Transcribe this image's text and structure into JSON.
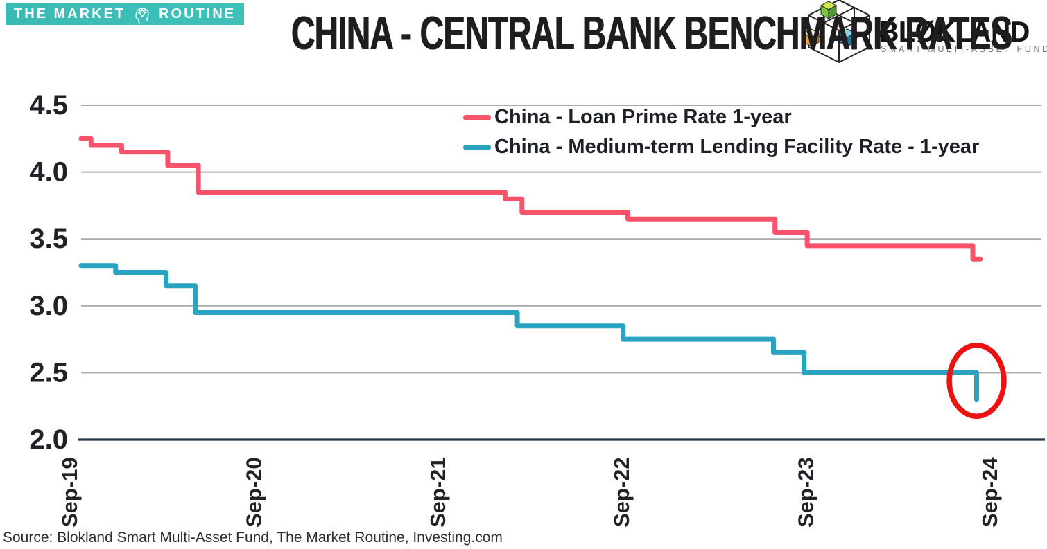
{
  "header": {
    "banner": {
      "text_left": "THE MARKET",
      "text_right": "ROUTINE",
      "icon": "head-lightbulb-icon",
      "bg_color": "#3ABAB3",
      "text_color": "#FFFFFF"
    },
    "title": "CHINA - CENTRAL BANK BENCHMARK RATES",
    "blokland_logo": {
      "wordmark": "BLØKLAND",
      "subtitle": "SMART MULTI-ASSET FUND",
      "icon": "blokland-cubes-icon",
      "cube_colors": [
        "#7DC242",
        "#F0A32A",
        "#2B9FC6"
      ]
    }
  },
  "chart_data": {
    "type": "line",
    "step": "post",
    "title": "CHINA - CENTRAL BANK BENCHMARK RATES",
    "x_axis": {
      "unit": "months since Sep-2019",
      "ticks": [
        {
          "t": 0,
          "label": "Sep-19"
        },
        {
          "t": 12,
          "label": "Sep-20"
        },
        {
          "t": 24,
          "label": "Sep-21"
        },
        {
          "t": 36,
          "label": "Sep-22"
        },
        {
          "t": 48,
          "label": "Sep-23"
        },
        {
          "t": 60,
          "label": "Sep-24"
        }
      ]
    },
    "y_axis": {
      "min": 2.0,
      "max": 4.5,
      "tick_step": 0.5,
      "tick_labels": [
        "4.5",
        "4.0",
        "3.5",
        "3.0",
        "2.5",
        "2.0"
      ],
      "grid_color": "#A9A9A9",
      "axis_color": "#22344A"
    },
    "series": [
      {
        "name": "China - Loan Prime Rate 1-year",
        "color": "#F8536B",
        "points": [
          {
            "t": 0,
            "v": 4.25
          },
          {
            "t": 0.6,
            "v": 4.2
          },
          {
            "t": 2.6,
            "v": 4.15
          },
          {
            "t": 5.6,
            "v": 4.05
          },
          {
            "t": 7.6,
            "v": 3.85
          },
          {
            "t": 27.6,
            "v": 3.8
          },
          {
            "t": 28.7,
            "v": 3.7
          },
          {
            "t": 35.6,
            "v": 3.65
          },
          {
            "t": 45.2,
            "v": 3.55
          },
          {
            "t": 47.3,
            "v": 3.45
          },
          {
            "t": 58.1,
            "v": 3.35
          },
          {
            "t": 58.6,
            "v": 3.35
          }
        ]
      },
      {
        "name": "China - Medium-term Lending Facility Rate - 1-year",
        "color": "#2AA2C1",
        "points": [
          {
            "t": 0,
            "v": 3.3
          },
          {
            "t": 2.2,
            "v": 3.25
          },
          {
            "t": 5.5,
            "v": 3.15
          },
          {
            "t": 7.4,
            "v": 2.95
          },
          {
            "t": 28.4,
            "v": 2.85
          },
          {
            "t": 35.3,
            "v": 2.75
          },
          {
            "t": 45.1,
            "v": 2.65
          },
          {
            "t": 47.1,
            "v": 2.5
          },
          {
            "t": 58.35,
            "v": 2.3
          }
        ]
      }
    ],
    "annotation": {
      "type": "ellipse",
      "color": "#EB1212",
      "center_t": 58.35,
      "center_value": 2.44,
      "radius_t": 1.78,
      "radius_value": 0.265
    },
    "legend_position": "top-center",
    "grid": true
  },
  "footer": {
    "source": "Source: Blokland Smart Multi-Asset Fund, The Market Routine, Investing.com"
  }
}
